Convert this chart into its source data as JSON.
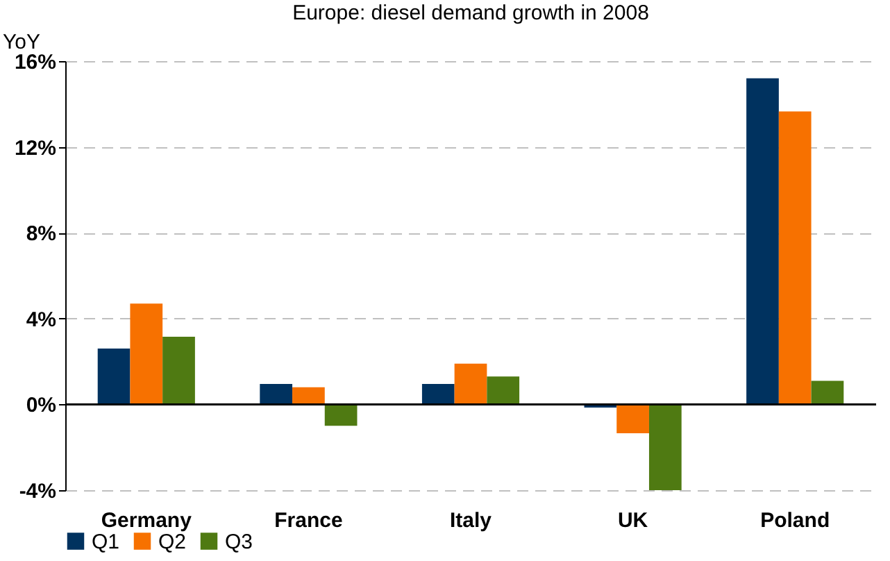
{
  "chart_data": {
    "type": "bar",
    "title": "Europe: diesel demand growth in 2008",
    "ylabel": "YoY",
    "categories": [
      "Germany",
      "France",
      "Italy",
      "UK",
      "Poland"
    ],
    "series": [
      {
        "name": "Q1",
        "color": "#00325f",
        "values": [
          2.6,
          0.95,
          0.95,
          -0.15,
          15.2
        ]
      },
      {
        "name": "Q2",
        "color": "#f77100",
        "values": [
          4.7,
          0.8,
          1.9,
          -1.35,
          13.65
        ]
      },
      {
        "name": "Q3",
        "color": "#4f7a12",
        "values": [
          3.15,
          -1.0,
          1.3,
          -4.0,
          1.1
        ]
      }
    ],
    "ylim": [
      -4,
      16
    ],
    "yticks": [
      {
        "value": -4,
        "label": "-4%"
      },
      {
        "value": 0,
        "label": "0%"
      },
      {
        "value": 4,
        "label": "4%"
      },
      {
        "value": 8,
        "label": "8%"
      },
      {
        "value": 12,
        "label": "12%"
      },
      {
        "value": 16,
        "label": "16%"
      }
    ],
    "grid": "y",
    "legend": "bottom"
  }
}
